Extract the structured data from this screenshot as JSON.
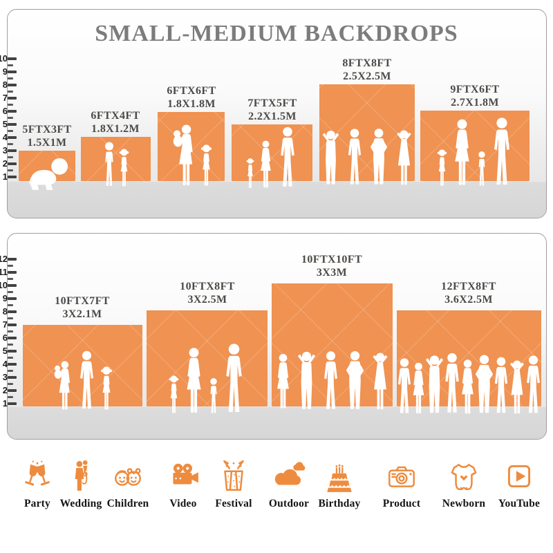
{
  "title": "SMALL-MEDIUM BACKDROPS",
  "top_panel": {
    "ruler": [
      "1",
      "2",
      "3",
      "4",
      "5",
      "6",
      "7",
      "8",
      "9",
      "10"
    ],
    "backdrops": [
      {
        "ft": "5FTX3FT",
        "m": "1.5X1M"
      },
      {
        "ft": "6FTX4FT",
        "m": "1.8X1.2M"
      },
      {
        "ft": "6FTX6FT",
        "m": "1.8X1.8M"
      },
      {
        "ft": "7FTX5FT",
        "m": "2.2X1.5M"
      },
      {
        "ft": "8FTX8FT",
        "m": "2.5X2.5M"
      },
      {
        "ft": "9FTX6FT",
        "m": "2.7X1.8M"
      }
    ]
  },
  "bottom_panel": {
    "ruler": [
      "1",
      "2",
      "3",
      "4",
      "5",
      "6",
      "7",
      "8",
      "9",
      "10",
      "11",
      "12"
    ],
    "backdrops": [
      {
        "ft": "10FTX7FT",
        "m": "3X2.1M"
      },
      {
        "ft": "10FTX8FT",
        "m": "3X2.5M"
      },
      {
        "ft": "10FTX10FT",
        "m": "3X3M"
      },
      {
        "ft": "12FTX8FT",
        "m": "3.6X2.5M"
      }
    ]
  },
  "categories": [
    {
      "label": "Party",
      "icon": "party-glasses-icon"
    },
    {
      "label": "Wedding",
      "icon": "wedding-couple-icon"
    },
    {
      "label": "Children",
      "icon": "children-faces-icon"
    },
    {
      "label": "Video",
      "icon": "video-camera-icon"
    },
    {
      "label": "Festival",
      "icon": "gift-box-icon"
    },
    {
      "label": "Outdoor",
      "icon": "clouds-icon"
    },
    {
      "label": "Birthday",
      "icon": "birthday-cake-icon"
    },
    {
      "label": "Product",
      "icon": "photo-camera-icon"
    },
    {
      "label": "Newborn",
      "icon": "baby-onesie-icon"
    },
    {
      "label": "YouTube",
      "icon": "play-button-icon"
    }
  ],
  "colors": {
    "backdrop_orange": "#EF9252",
    "icon_orange": "#ED8C3F",
    "title_gray": "#7C7C7C",
    "label_gray": "#4C4A47"
  }
}
